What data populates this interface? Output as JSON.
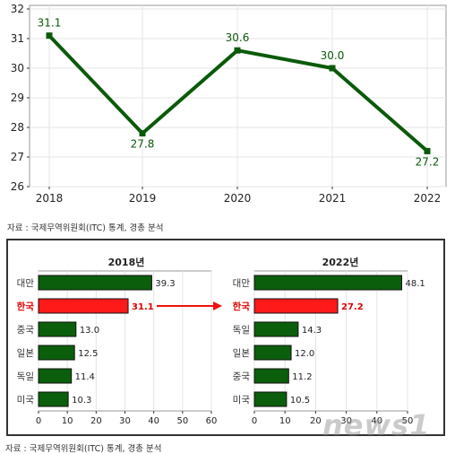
{
  "source_label": "자료 : 국제무역위원회(ITC) 통계, 경총 분석",
  "watermark": "news1",
  "chart_data": [
    {
      "type": "line",
      "x": [
        "2018",
        "2019",
        "2020",
        "2021",
        "2022"
      ],
      "series": [
        {
          "values": [
            31.1,
            27.8,
            30.6,
            30.0,
            27.2
          ]
        }
      ],
      "data_labels": [
        "31.1",
        "27.8",
        "30.6",
        "30.0",
        "27.2"
      ],
      "yticks": [
        "26",
        "27",
        "28",
        "29",
        "30",
        "31",
        "32"
      ],
      "ylim": [
        26,
        32
      ],
      "color": "#0a5a0a",
      "grid": true
    },
    {
      "type": "bar",
      "orientation": "horizontal",
      "title": "2018년",
      "categories": [
        "대만",
        "한국",
        "중국",
        "일본",
        "독일",
        "미국"
      ],
      "values": [
        39.3,
        31.1,
        13.0,
        12.5,
        11.4,
        10.3
      ],
      "labels": [
        "39.3",
        "31.1",
        "13.0",
        "12.5",
        "11.4",
        "10.3"
      ],
      "highlight": "한국",
      "xticks": [
        "0",
        "10",
        "20",
        "30",
        "40",
        "50",
        "60"
      ],
      "xlim": [
        0,
        60
      ],
      "bar_color": "#0b5e0b",
      "highlight_color": "#ff1a1a"
    },
    {
      "type": "bar",
      "orientation": "horizontal",
      "title": "2022년",
      "categories": [
        "대만",
        "한국",
        "독일",
        "일본",
        "중국",
        "미국"
      ],
      "values": [
        48.1,
        27.2,
        14.3,
        12.0,
        11.2,
        10.5
      ],
      "labels": [
        "48.1",
        "27.2",
        "14.3",
        "12.0",
        "11.2",
        "10.5"
      ],
      "highlight": "한국",
      "xticks": [
        "0",
        "10",
        "20",
        "30",
        "40",
        "50"
      ],
      "xlim": [
        0,
        50
      ],
      "bar_color": "#0b5e0b",
      "highlight_color": "#ff1a1a"
    }
  ]
}
